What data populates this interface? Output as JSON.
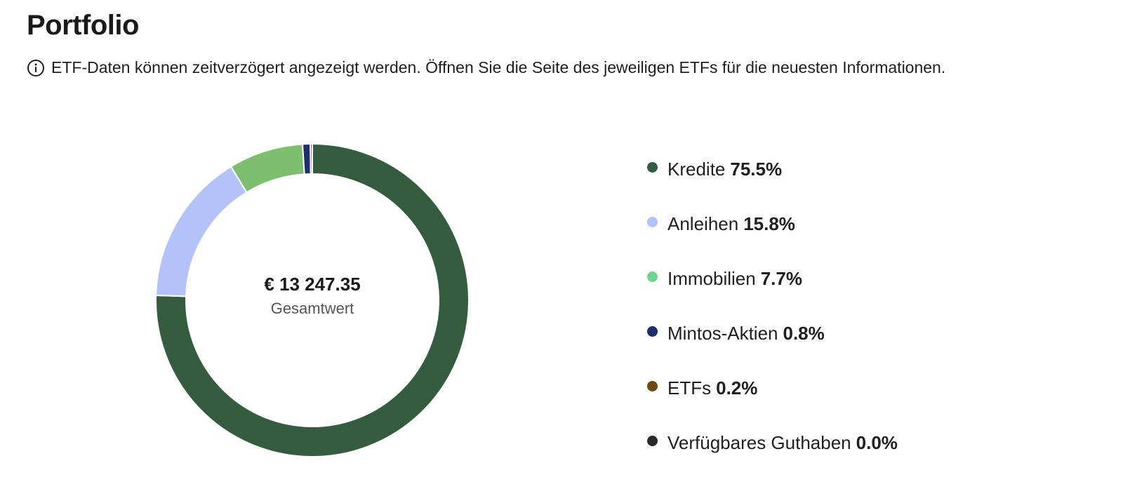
{
  "page": {
    "title": "Portfolio",
    "notice": "ETF-Daten können zeitverzögert angezeigt werden. Öffnen Sie die Seite des jeweiligen ETFs für die neuesten Informationen."
  },
  "summary": {
    "total": "€ 13 247.35",
    "total_label": "Gesamtwert"
  },
  "legend": [
    {
      "label": "Kredite",
      "pct": "75.5%"
    },
    {
      "label": "Anleihen",
      "pct": "15.8%"
    },
    {
      "label": "Immobilien",
      "pct": "7.7%"
    },
    {
      "label": "Mintos-Aktien",
      "pct": "0.8%"
    },
    {
      "label": "ETFs",
      "pct": "0.2%"
    },
    {
      "label": "Verfügbares Guthaben",
      "pct": "0.0%"
    }
  ],
  "chart_data": {
    "type": "pie",
    "categories": [
      "Kredite",
      "Anleihen",
      "Immobilien",
      "Mintos-Aktien",
      "ETFs",
      "Verfügbares Guthaben"
    ],
    "values": [
      75.5,
      15.8,
      7.7,
      0.8,
      0.2,
      0.0
    ],
    "colors": [
      "#355c3e",
      "#b3c2f8",
      "#7dbf6e",
      "#1e2d6b",
      "#6b4a12",
      "#2a2a2a"
    ],
    "legend_colors": [
      "#355c3e",
      "#b3c2f8",
      "#6fd38e",
      "#1e2d6b",
      "#6b4a12",
      "#2a2a2a"
    ],
    "style": "donut",
    "legend_position": "right"
  }
}
